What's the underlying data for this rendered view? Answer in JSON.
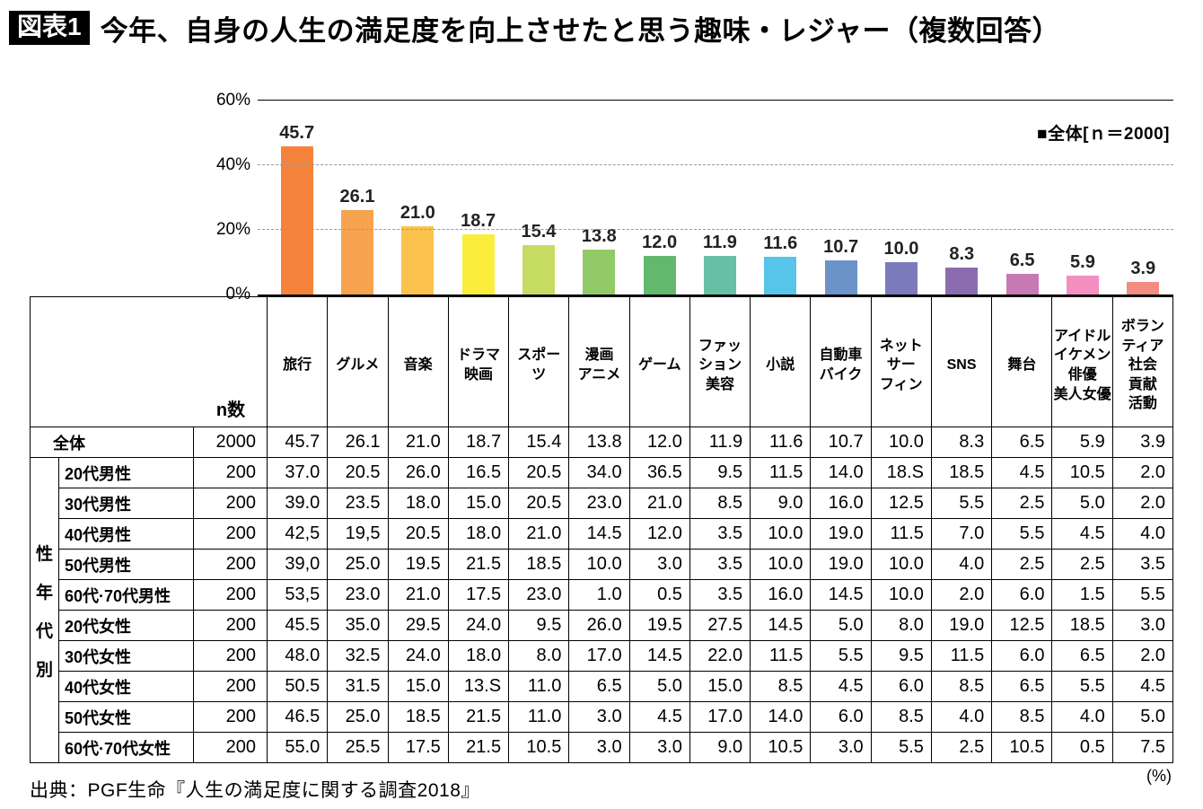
{
  "header": {
    "tag": "図表1",
    "title": "今年、自身の人生の満足度を向上させたと思う趣味・レジャー（複数回答）"
  },
  "chart_data": {
    "type": "bar",
    "legend": "■全体[ｎ＝2000]",
    "legend_position": "top-right",
    "grid": "dashed horizontal lines at 20% and 40%, solid line at 60%",
    "ylim": [
      0,
      60
    ],
    "yticks": [
      {
        "label": "0%",
        "value": 0
      },
      {
        "label": "20%",
        "value": 20
      },
      {
        "label": "40%",
        "value": 40
      },
      {
        "label": "60%",
        "value": 60
      }
    ],
    "categories": [
      "旅行",
      "グルメ",
      "音楽",
      "ドラマ映画",
      "スポーツ",
      "漫画アニメ",
      "ゲーム",
      "ファッション美容",
      "小説",
      "自動車バイク",
      "ネットサーフィン",
      "SNS",
      "舞台",
      "アイドルイケメン俳優美人女優",
      "ボランティア社会貢献活動"
    ],
    "values": [
      45.7,
      26.1,
      21.0,
      18.7,
      15.4,
      13.8,
      12.0,
      11.9,
      11.6,
      10.7,
      10.0,
      8.3,
      6.5,
      5.9,
      3.9
    ],
    "value_labels": [
      "45.7",
      "26.1",
      "21.0",
      "18.7",
      "15.4",
      "13.8",
      "12.0",
      "11.9",
      "11.6",
      "10.7",
      "10.0",
      "8.3",
      "6.5",
      "5.9",
      "3.9"
    ],
    "bar_colors": [
      "#F5833C",
      "#F7A34F",
      "#FBC24D",
      "#FAED3E",
      "#C6DB62",
      "#92CA67",
      "#62B96E",
      "#67C0A5",
      "#57C4E9",
      "#6C92CA",
      "#7B7ABC",
      "#8B6DAF",
      "#C779B3",
      "#F48FC1",
      "#F28B80"
    ]
  },
  "table": {
    "n_header": "n数",
    "group_label": "性年代別",
    "group_label_chars": [
      "性",
      "年",
      "代",
      "別"
    ],
    "column_headers": [
      "旅行",
      "グルメ",
      "音楽",
      "ドラマ\n映画",
      "スポー\nツ",
      "漫画\nアニメ",
      "ゲーム",
      "ファッ\nション\n美容",
      "小説",
      "自動車\nバイク",
      "ネット\nサー\nフィン",
      "SNS",
      "舞台",
      "アイドル\nイケメン\n俳優\n美人女優",
      "ボラン\nティア\n社会\n貢献\n活動"
    ],
    "rows": [
      {
        "label": "全体",
        "n": "2000",
        "values": [
          "45.7",
          "26.1",
          "21.0",
          "18.7",
          "15.4",
          "13.8",
          "12.0",
          "11.9",
          "11.6",
          "10.7",
          "10.0",
          "8.3",
          "6.5",
          "5.9",
          "3.9"
        ]
      },
      {
        "label": "20代男性",
        "n": "200",
        "values": [
          "37.0",
          "20.5",
          "26.0",
          "16.5",
          "20.5",
          "34.0",
          "36.5",
          "9.5",
          "11.5",
          "14.0",
          "18.S",
          "18.5",
          "4.5",
          "10.5",
          "2.0"
        ]
      },
      {
        "label": "30代男性",
        "n": "200",
        "values": [
          "39.0",
          "23.5",
          "18.0",
          "15.0",
          "20.5",
          "23.0",
          "21.0",
          "8.5",
          "9.0",
          "16.0",
          "12.5",
          "5.5",
          "2.5",
          "5.0",
          "2.0"
        ]
      },
      {
        "label": "40代男性",
        "n": "200",
        "values": [
          "42,5",
          "19,5",
          "20.5",
          "18.0",
          "21.0",
          "14.5",
          "12.0",
          "3.5",
          "10.0",
          "19.0",
          "11.5",
          "7.0",
          "5.5",
          "4.5",
          "4.0"
        ]
      },
      {
        "label": "50代男性",
        "n": "200",
        "values": [
          "39,0",
          "25.0",
          "19.5",
          "21.5",
          "18.5",
          "10.0",
          "3.0",
          "3.5",
          "10.0",
          "19.0",
          "10.0",
          "4.0",
          "2.5",
          "2.5",
          "3.5"
        ]
      },
      {
        "label": "60代·70代男性",
        "n": "200",
        "values": [
          "53,5",
          "23.0",
          "21.0",
          "17.5",
          "23.0",
          "1.0",
          "0.5",
          "3.5",
          "16.0",
          "14.5",
          "10.0",
          "2.0",
          "6.0",
          "1.5",
          "5.5"
        ]
      },
      {
        "label": "20代女性",
        "n": "200",
        "values": [
          "45.5",
          "35.0",
          "29.5",
          "24.0",
          "9.5",
          "26.0",
          "19.5",
          "27.5",
          "14.5",
          "5.0",
          "8.0",
          "19.0",
          "12.5",
          "18.5",
          "3.0"
        ]
      },
      {
        "label": "30代女性",
        "n": "200",
        "values": [
          "48.0",
          "32.5",
          "24.0",
          "18.0",
          "8.0",
          "17.0",
          "14.5",
          "22.0",
          "11.5",
          "5.5",
          "9.5",
          "11.5",
          "6.0",
          "6.5",
          "2.0"
        ]
      },
      {
        "label": "40代女性",
        "n": "200",
        "values": [
          "50.5",
          "31.5",
          "15.0",
          "13.S",
          "11.0",
          "6.5",
          "5.0",
          "15.0",
          "8.5",
          "4.5",
          "6.0",
          "8.5",
          "6.5",
          "5.5",
          "4.5"
        ]
      },
      {
        "label": "50代女性",
        "n": "200",
        "values": [
          "46.5",
          "25.0",
          "18.5",
          "21.5",
          "11.0",
          "3.0",
          "4.5",
          "17.0",
          "14.0",
          "6.0",
          "8.5",
          "4.0",
          "8.5",
          "4.0",
          "5.0"
        ]
      },
      {
        "label": "60代·70代女性",
        "n": "200",
        "values": [
          "55.0",
          "25.5",
          "17.5",
          "21.5",
          "10.5",
          "3.0",
          "3.0",
          "9.0",
          "10.5",
          "3.0",
          "5.5",
          "2.5",
          "10.5",
          "0.5",
          "7.5"
        ]
      }
    ]
  },
  "footer": {
    "source": "出典：PGF生命『人生の満足度に関する調査2018』",
    "unit": "(%)"
  }
}
